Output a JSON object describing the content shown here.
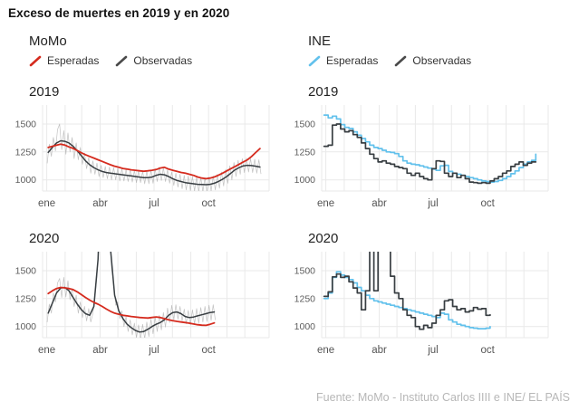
{
  "title": "Exceso de muertes en 2019 y en 2020",
  "footer": "Fuente: MoMo - Instituto Carlos IIII e INE/ EL PAÍS",
  "colors": {
    "esperadas_momo": "#d52b1e",
    "esperadas_ine": "#62c1ec",
    "observadas": "#383e42",
    "observadas_raw": "#999999",
    "gridline": "#e9e9e9",
    "tick_text": "#5c5c5c",
    "title_text": "#121212",
    "footer_text": "#b7b7b7"
  },
  "columns": [
    {
      "id": "momo",
      "header": "MoMo",
      "legend": [
        {
          "label": "Esperadas",
          "color": "#d52b1e"
        },
        {
          "label": "Observadas",
          "color": "#4a4a4a"
        }
      ]
    },
    {
      "id": "ine",
      "header": "INE",
      "legend": [
        {
          "label": "Esperadas",
          "color": "#62c1ec"
        },
        {
          "label": "Observadas",
          "color": "#4a4a4a"
        }
      ]
    }
  ],
  "axes": {
    "ylim": [
      900,
      1670
    ],
    "yticks": [
      1000,
      1250,
      1500
    ],
    "xticks": [
      {
        "label": "ene",
        "day": 1
      },
      {
        "label": "abr",
        "day": 91
      },
      {
        "label": "jul",
        "day": 182
      },
      {
        "label": "oct",
        "day": 274
      }
    ],
    "month_start_days": [
      1,
      32,
      60,
      91,
      121,
      152,
      182,
      213,
      244,
      274,
      305,
      335
    ],
    "domain": [
      -6,
      376
    ],
    "grid": "on",
    "legend_position": "top"
  },
  "chart_data": [
    {
      "id": "momo-2019",
      "year": "2019",
      "type": "line",
      "series": [
        {
          "name": "observadas-diarias",
          "role": "raw",
          "type": "line",
          "color": "#999999",
          "points_per_week": 2,
          "values": [
            1150,
            1320,
            1210,
            1380,
            1260,
            1450,
            1500,
            1270,
            1440,
            1230,
            1420,
            1250,
            1380,
            1190,
            1330,
            1180,
            1290,
            1140,
            1240,
            1100,
            1200,
            1060,
            1170,
            1050,
            1150,
            1030,
            1130,
            1020,
            1120,
            1010,
            1115,
            1000,
            1110,
            1000,
            1105,
            990,
            1100,
            990,
            1090,
            985,
            1090,
            980,
            1085,
            975,
            1080,
            975,
            1075,
            965,
            1080,
            965,
            1085,
            970,
            1100,
            985,
            1115,
            995,
            1110,
            985,
            1090,
            970,
            1070,
            950,
            1060,
            935,
            1050,
            920,
            1040,
            910,
            1035,
            905,
            1030,
            900,
            1025,
            895,
            1020,
            895,
            1020,
            895,
            1025,
            900,
            1035,
            910,
            1050,
            925,
            1070,
            945,
            1095,
            970,
            1125,
            1000,
            1155,
            1030,
            1175,
            1050,
            1190,
            1065,
            1195,
            1070,
            1190,
            1065,
            1185,
            1060,
            1180,
            1055
          ]
        },
        {
          "name": "observadas",
          "role": "observadas",
          "type": "line",
          "color": "#383e42",
          "points_per_week": 1,
          "values": [
            1245,
            1290,
            1330,
            1350,
            1345,
            1330,
            1300,
            1260,
            1215,
            1170,
            1135,
            1110,
            1090,
            1075,
            1065,
            1060,
            1055,
            1050,
            1045,
            1040,
            1035,
            1030,
            1025,
            1020,
            1020,
            1025,
            1040,
            1050,
            1045,
            1030,
            1010,
            995,
            985,
            975,
            970,
            965,
            960,
            958,
            957,
            960,
            970,
            985,
            1005,
            1030,
            1060,
            1090,
            1110,
            1125,
            1130,
            1128,
            1122,
            1115
          ]
        },
        {
          "name": "esperadas",
          "role": "esperadas",
          "type": "line",
          "color": "#d52b1e",
          "points_per_week": 1,
          "values": [
            1290,
            1300,
            1310,
            1320,
            1312,
            1295,
            1282,
            1262,
            1242,
            1225,
            1210,
            1195,
            1180,
            1165,
            1150,
            1135,
            1122,
            1112,
            1102,
            1096,
            1090,
            1086,
            1081,
            1077,
            1081,
            1086,
            1092,
            1106,
            1112,
            1096,
            1086,
            1076,
            1066,
            1060,
            1050,
            1040,
            1026,
            1016,
            1010,
            1016,
            1026,
            1041,
            1060,
            1080,
            1100,
            1120,
            1140,
            1160,
            1180,
            1210,
            1245,
            1280
          ]
        }
      ]
    },
    {
      "id": "momo-2020",
      "year": "2020",
      "type": "line",
      "series": [
        {
          "name": "observadas-diarias",
          "role": "raw",
          "type": "line",
          "color": "#999999",
          "points_per_week": 2,
          "values": [
            1040,
            1200,
            1120,
            1300,
            1220,
            1390,
            1430,
            1260,
            1440,
            1265,
            1410,
            1240,
            1340,
            1180,
            1280,
            1120,
            1220,
            1080,
            1180,
            1050,
            1160,
            1040,
            1120,
            1260,
            1450,
            1780,
            2300,
            2850,
            2800,
            2400,
            1950,
            1520,
            1400,
            1190,
            1220,
            1070,
            1140,
            1000,
            1090,
            955,
            1060,
            925,
            1030,
            900,
            1015,
            885,
            1020,
            890,
            1040,
            910,
            1065,
            935,
            1085,
            955,
            1100,
            970,
            1125,
            995,
            1165,
            1035,
            1190,
            1060,
            1195,
            1065,
            1180,
            1050,
            1155,
            1025,
            1145,
            1015,
            1150,
            1020,
            1160,
            1030,
            1170,
            1040,
            1180,
            1045,
            1190,
            1055,
            1195,
            1060
          ]
        },
        {
          "name": "observadas",
          "role": "observadas",
          "type": "line",
          "color": "#383e42",
          "points_per_week": 1,
          "values": [
            1120,
            1210,
            1300,
            1345,
            1350,
            1320,
            1260,
            1200,
            1150,
            1115,
            1100,
            1180,
            1600,
            2600,
            2600,
            1700,
            1280,
            1140,
            1070,
            1020,
            990,
            965,
            950,
            955,
            975,
            1000,
            1020,
            1035,
            1060,
            1100,
            1125,
            1130,
            1115,
            1090,
            1080,
            1085,
            1095,
            1105,
            1115,
            1125,
            1130
          ]
        },
        {
          "name": "esperadas",
          "role": "esperadas",
          "type": "line",
          "color": "#d52b1e",
          "points_per_week": 1,
          "values": [
            1295,
            1320,
            1340,
            1350,
            1346,
            1340,
            1330,
            1310,
            1285,
            1260,
            1236,
            1216,
            1200,
            1180,
            1156,
            1136,
            1120,
            1110,
            1100,
            1095,
            1090,
            1086,
            1081,
            1078,
            1076,
            1081,
            1086,
            1081,
            1070,
            1060,
            1052,
            1046,
            1040,
            1035,
            1030,
            1022,
            1016,
            1012,
            1010,
            1020,
            1032
          ]
        }
      ]
    },
    {
      "id": "ine-2019",
      "year": "2019",
      "type": "line",
      "series": [
        {
          "name": "esperadas",
          "role": "esperadas",
          "type": "step",
          "color": "#62c1ec",
          "points_per_week": 1,
          "values": [
            1580,
            1555,
            1570,
            1545,
            1495,
            1470,
            1460,
            1430,
            1400,
            1370,
            1340,
            1310,
            1290,
            1280,
            1265,
            1250,
            1245,
            1235,
            1210,
            1170,
            1150,
            1140,
            1135,
            1125,
            1115,
            1105,
            1095,
            1085,
            1125,
            1130,
            1075,
            1060,
            1050,
            1040,
            1030,
            1020,
            1010,
            1000,
            990,
            985,
            980,
            985,
            995,
            1010,
            1030,
            1055,
            1080,
            1110,
            1140,
            1160,
            1175,
            1230
          ]
        },
        {
          "name": "observadas",
          "role": "observadas",
          "type": "step",
          "color": "#383e42",
          "points_per_week": 1,
          "values": [
            1300,
            1310,
            1490,
            1500,
            1455,
            1430,
            1440,
            1405,
            1380,
            1330,
            1280,
            1230,
            1190,
            1160,
            1170,
            1150,
            1140,
            1120,
            1110,
            1100,
            1060,
            1040,
            1060,
            1030,
            1010,
            1000,
            1100,
            1170,
            1165,
            1060,
            1030,
            1060,
            1020,
            1040,
            1010,
            980,
            975,
            970,
            975,
            970,
            990,
            1010,
            1030,
            1060,
            1080,
            1120,
            1140,
            1160,
            1130,
            1150,
            1160,
            1160
          ]
        }
      ]
    },
    {
      "id": "ine-2020",
      "year": "2020",
      "type": "line",
      "series": [
        {
          "name": "esperadas",
          "role": "esperadas",
          "type": "step",
          "color": "#62c1ec",
          "points_per_week": 1,
          "values": [
            1250,
            1300,
            1440,
            1490,
            1460,
            1440,
            1420,
            1390,
            1350,
            1320,
            1280,
            1250,
            1230,
            1220,
            1210,
            1200,
            1190,
            1180,
            1170,
            1160,
            1150,
            1140,
            1130,
            1120,
            1110,
            1100,
            1090,
            1080,
            1120,
            1110,
            1060,
            1040,
            1020,
            1010,
            1000,
            990,
            985,
            980,
            980,
            985,
            1000
          ]
        },
        {
          "name": "observadas",
          "role": "observadas",
          "type": "step",
          "color": "#383e42",
          "points_per_week": 1,
          "values": [
            1270,
            1310,
            1445,
            1470,
            1440,
            1450,
            1400,
            1345,
            1300,
            1150,
            1320,
            2500,
            1320,
            2600,
            2600,
            1900,
            1450,
            1300,
            1250,
            1150,
            1100,
            1080,
            1000,
            975,
            1010,
            990,
            1030,
            1100,
            1150,
            1230,
            1240,
            1180,
            1150,
            1160,
            1130,
            1140,
            1170,
            1155,
            1160,
            1100,
            1105
          ]
        }
      ]
    }
  ]
}
